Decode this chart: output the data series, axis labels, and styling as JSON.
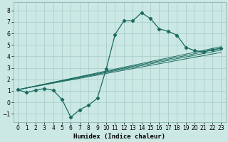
{
  "xlabel": "Humidex (Indice chaleur)",
  "bg_color": "#cce8e4",
  "grid_color": "#aacfcb",
  "line_color": "#1a6b60",
  "xlim": [
    -0.5,
    23.5
  ],
  "ylim": [
    -1.7,
    8.7
  ],
  "xticks": [
    0,
    1,
    2,
    3,
    4,
    5,
    6,
    7,
    8,
    9,
    10,
    11,
    12,
    13,
    14,
    15,
    16,
    17,
    18,
    19,
    20,
    21,
    22,
    23
  ],
  "yticks": [
    -1,
    0,
    1,
    2,
    3,
    4,
    5,
    6,
    7,
    8
  ],
  "main_x": [
    0,
    1,
    2,
    3,
    4,
    5,
    6,
    7,
    8,
    9,
    10,
    11,
    12,
    13,
    14,
    15,
    16,
    17,
    18,
    19,
    20,
    21,
    22,
    23
  ],
  "main_y": [
    1.1,
    0.85,
    1.05,
    1.2,
    1.05,
    0.25,
    -1.3,
    -0.65,
    -0.25,
    0.35,
    2.9,
    5.9,
    7.1,
    7.1,
    7.8,
    7.3,
    6.4,
    6.2,
    5.85,
    4.8,
    4.5,
    4.4,
    4.6,
    4.7
  ],
  "ref_lines": [
    {
      "x": [
        0,
        23
      ],
      "y": [
        1.1,
        4.35
      ]
    },
    {
      "x": [
        0,
        23
      ],
      "y": [
        1.1,
        4.55
      ]
    },
    {
      "x": [
        0,
        23
      ],
      "y": [
        1.1,
        4.7
      ]
    },
    {
      "x": [
        0,
        23
      ],
      "y": [
        1.1,
        4.85
      ]
    }
  ]
}
